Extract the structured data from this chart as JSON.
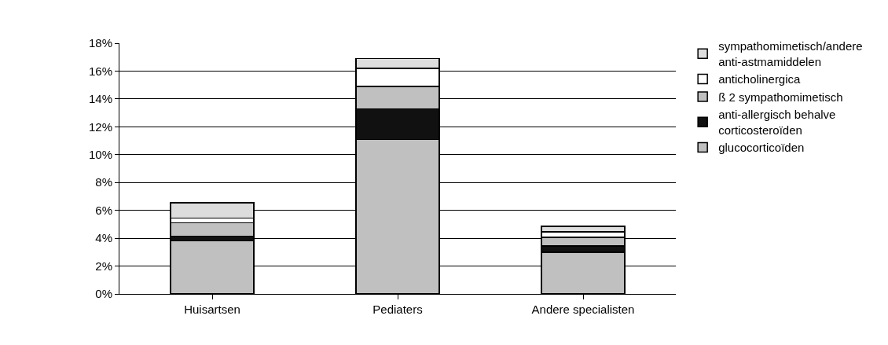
{
  "chart_data": {
    "type": "bar",
    "stacked": true,
    "categories": [
      "Huisartsen",
      "Pediaters",
      "Andere specialisten"
    ],
    "series": [
      {
        "name": "glucocorticoïden",
        "color": "#c0c0c0",
        "values": [
          3.8,
          11.1,
          3.0
        ]
      },
      {
        "name": "anti-allergisch behalve corticosteroïden",
        "color": "#111111",
        "values": [
          0.35,
          2.2,
          0.45
        ]
      },
      {
        "name": "ß 2 sympathomimetisch",
        "color": "#c0c0c0",
        "values": [
          0.95,
          1.6,
          0.6
        ]
      },
      {
        "name": "anticholinergica",
        "color": "#ffffff",
        "values": [
          0.35,
          1.3,
          0.4
        ]
      },
      {
        "name": "sympathomimetisch/andere anti-astmamiddelen",
        "color": "#dddddd",
        "values": [
          1.1,
          0.7,
          0.4
        ]
      }
    ],
    "ylim": [
      0,
      18
    ],
    "yticks": [
      {
        "value": 0,
        "label": "0%"
      },
      {
        "value": 2,
        "label": "2%"
      },
      {
        "value": 4,
        "label": "4%"
      },
      {
        "value": 6,
        "label": "6%"
      },
      {
        "value": 8,
        "label": "8%"
      },
      {
        "value": 10,
        "label": "10%"
      },
      {
        "value": 12,
        "label": "12%"
      },
      {
        "value": 14,
        "label": "14%"
      },
      {
        "value": 16,
        "label": "16%"
      },
      {
        "value": 18,
        "label": "18%"
      }
    ],
    "grid": "y",
    "legend": "right"
  }
}
